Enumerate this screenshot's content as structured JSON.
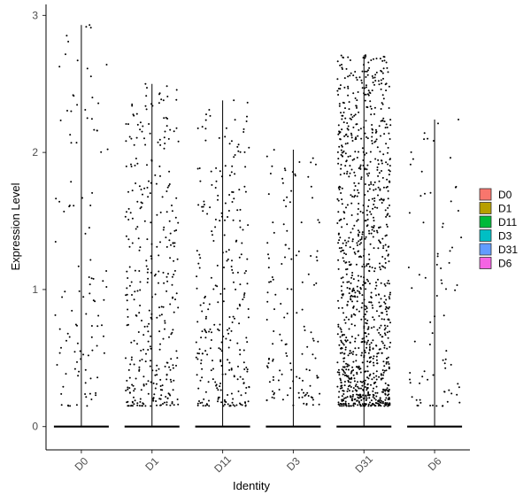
{
  "chart_data": {
    "type": "violin-jitter",
    "xlabel": "Identity",
    "ylabel": "Expression Level",
    "categories": [
      "D0",
      "D1",
      "D11",
      "D3",
      "D31",
      "D6"
    ],
    "ylim": [
      -0.17,
      3.08
    ],
    "yticks": [
      0,
      1,
      2,
      3
    ],
    "max_values": [
      2.93,
      2.5,
      2.38,
      2.02,
      2.71,
      2.24
    ],
    "colors": [
      "#F8766D",
      "#B79F00",
      "#00BA38",
      "#00BFC4",
      "#619CFF",
      "#F564E3"
    ],
    "series": [
      {
        "name": "D0",
        "nonzero_points": 110
      },
      {
        "name": "D1",
        "nonzero_points": 350
      },
      {
        "name": "D11",
        "nonzero_points": 280
      },
      {
        "name": "D3",
        "nonzero_points": 140
      },
      {
        "name": "D31",
        "nonzero_points": 1100
      },
      {
        "name": "D6",
        "nonzero_points": 80
      }
    ],
    "legend": {
      "position": "right",
      "entries": [
        "D0",
        "D1",
        "D11",
        "D3",
        "D31",
        "D6"
      ]
    },
    "grid": false
  }
}
